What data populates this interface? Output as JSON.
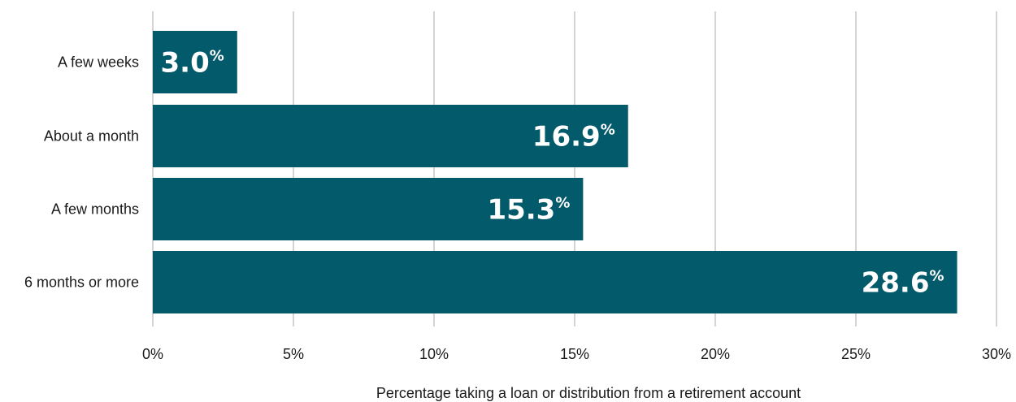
{
  "chart_data": {
    "type": "bar",
    "orientation": "horizontal",
    "categories": [
      "A few weeks",
      "About a month",
      "A few months",
      "6 months or more"
    ],
    "values": [
      3.0,
      16.9,
      15.3,
      28.6
    ],
    "value_labels": [
      "3.0",
      "16.9",
      "15.3",
      "28.6"
    ],
    "value_suffix": "%",
    "xlabel": "Percentage taking a loan or distribution from a retirement account",
    "ylabel": "",
    "xlim": [
      0,
      30
    ],
    "x_ticks": [
      0,
      5,
      10,
      15,
      20,
      25,
      30
    ],
    "x_tick_labels": [
      "0%",
      "5%",
      "10%",
      "15%",
      "20%",
      "25%",
      "30%"
    ],
    "grid": true,
    "colors": {
      "bar": "#035a6b",
      "grid": "#b8b8b8",
      "text": "#1a1a1a",
      "value_text": "#ffffff"
    }
  }
}
